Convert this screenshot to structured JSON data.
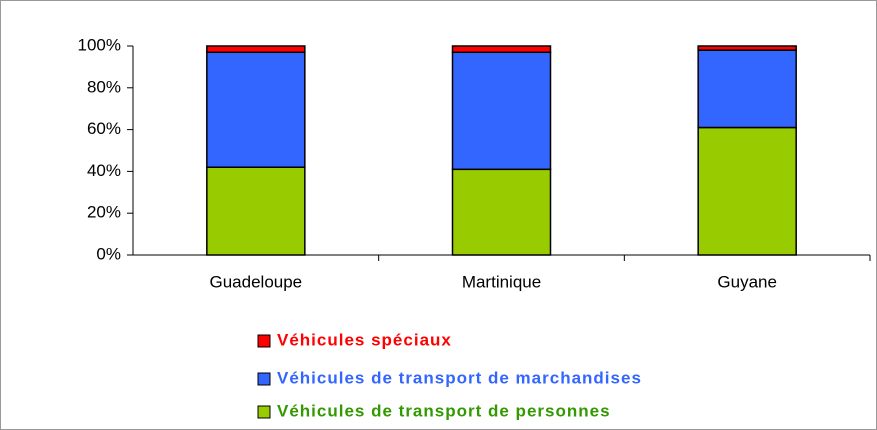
{
  "chart_data": {
    "type": "stacked-bar",
    "categories": [
      "Guadeloupe",
      "Martinique",
      "Guyane"
    ],
    "series": [
      {
        "name": "Véhicules de transport de personnes",
        "color": "#99cc00",
        "values": [
          42,
          41,
          61
        ]
      },
      {
        "name": "Véhicules de transport de marchandises",
        "color": "#3366ff",
        "values": [
          55,
          56,
          37
        ]
      },
      {
        "name": "Véhicules spéciaux",
        "color": "#ff0000",
        "values": [
          3,
          3,
          2
        ]
      }
    ],
    "ylim": [
      0,
      100
    ],
    "yticks": [
      {
        "value": 0,
        "label": "0%"
      },
      {
        "value": 20,
        "label": "20%"
      },
      {
        "value": 40,
        "label": "40%"
      },
      {
        "value": 60,
        "label": "60%"
      },
      {
        "value": 80,
        "label": "80%"
      },
      {
        "value": 100,
        "label": "100%"
      }
    ],
    "grid": false
  }
}
